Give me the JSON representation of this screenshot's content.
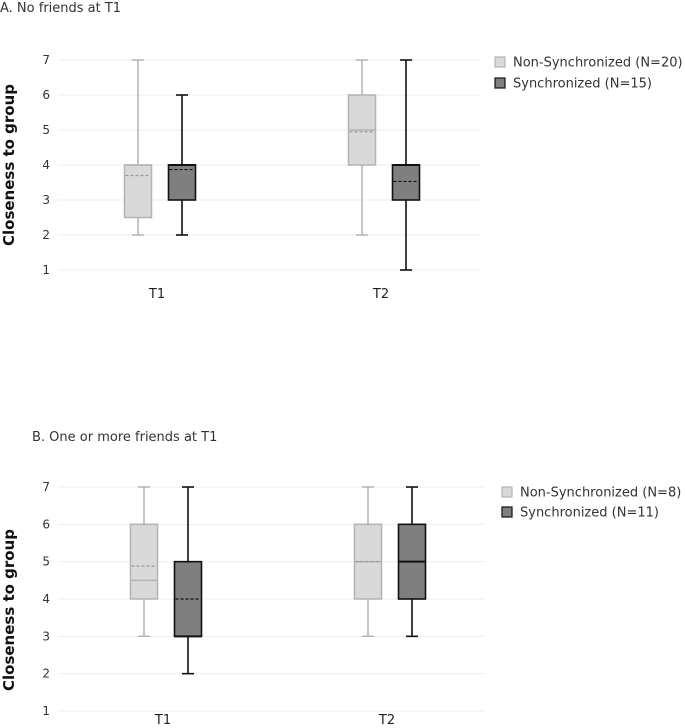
{
  "chart_data": [
    {
      "type": "box",
      "title": "A. No friends at T1",
      "ylabel": "Closeness to group",
      "categories": [
        "T1",
        "T2"
      ],
      "ylim": [
        1,
        7
      ],
      "yticks": [
        1,
        2,
        3,
        4,
        5,
        6,
        7
      ],
      "grid": true,
      "legend_position": "top-right",
      "series": [
        {
          "name": "Non-Synchronized (N=20)",
          "fill": "#d9d9d9",
          "stroke": "#b3b3b3",
          "boxes": [
            {
              "category": "T1",
              "min": 2,
              "q1": 2.5,
              "median": 4,
              "q3": 4,
              "max": 7,
              "mean": 3.7
            },
            {
              "category": "T2",
              "min": 2,
              "q1": 4,
              "median": 5,
              "q3": 6,
              "max": 7,
              "mean": 4.95
            }
          ]
        },
        {
          "name": "Synchronized (N=15)",
          "fill": "#7f7f7f",
          "stroke": "#111111",
          "boxes": [
            {
              "category": "T1",
              "min": 2,
              "q1": 3,
              "median": 4,
              "q3": 4,
              "max": 6,
              "mean": 3.87
            },
            {
              "category": "T2",
              "min": 1,
              "q1": 3,
              "median": 4,
              "q3": 4,
              "max": 7,
              "mean": 3.53
            }
          ]
        }
      ]
    },
    {
      "type": "box",
      "title": "B. One or more friends at T1",
      "ylabel": "Closeness to group",
      "categories": [
        "T1",
        "T2"
      ],
      "ylim": [
        1,
        7
      ],
      "yticks": [
        1,
        2,
        3,
        4,
        5,
        6,
        7
      ],
      "grid": true,
      "legend_position": "top-right",
      "series": [
        {
          "name": "Non-Synchronized (N=8)",
          "fill": "#d9d9d9",
          "stroke": "#b3b3b3",
          "boxes": [
            {
              "category": "T1",
              "min": 3,
              "q1": 4,
              "median": 4.5,
              "q3": 6,
              "max": 7,
              "mean": 4.88
            },
            {
              "category": "T2",
              "min": 3,
              "q1": 4,
              "median": 5,
              "q3": 6,
              "max": 7,
              "mean": 5.0
            }
          ]
        },
        {
          "name": "Synchronized (N=11)",
          "fill": "#7f7f7f",
          "stroke": "#111111",
          "boxes": [
            {
              "category": "T1",
              "min": 2,
              "q1": 3,
              "median": 3,
              "q3": 5,
              "max": 7,
              "mean": 4.0
            },
            {
              "category": "T2",
              "min": 3,
              "q1": 4,
              "median": 5,
              "q3": 6,
              "max": 7,
              "mean": 5.0
            }
          ]
        }
      ]
    }
  ]
}
